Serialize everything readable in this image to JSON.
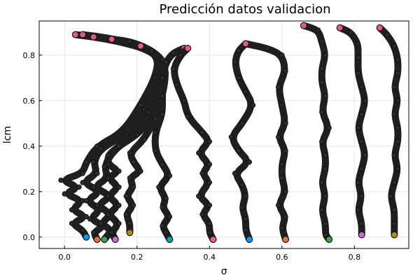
{
  "chart_data": {
    "type": "scatter",
    "title": "Predicción datos validacion",
    "xlabel": "σ",
    "ylabel": "lcm",
    "xlim": [
      -0.07,
      0.95
    ],
    "ylim": [
      -0.05,
      0.95
    ],
    "xticks": [
      0.0,
      0.2,
      0.4,
      0.6,
      0.8
    ],
    "yticks": [
      0.0,
      0.2,
      0.4,
      0.6,
      0.8
    ],
    "xtick_labels": [
      "0.0",
      "0.2",
      "0.4",
      "0.6",
      "0.8"
    ],
    "ytick_labels": [
      "0.0",
      "0.2",
      "0.4",
      "0.6",
      "0.8"
    ],
    "grid": true,
    "legend": "none",
    "colors": {
      "trajectory": "#1f1f1f",
      "start_marker": "#e5588e",
      "end_markers": [
        "#009af9",
        "#e26f46",
        "#3da44d",
        "#c271d2",
        "#ac8d18",
        "#00a9ad",
        "#ed5e93"
      ]
    },
    "series": [
      {
        "points": [
          [
            0.03,
            0.89
          ],
          [
            0.08,
            0.88
          ],
          [
            0.15,
            0.86
          ],
          [
            0.22,
            0.83
          ],
          [
            0.26,
            0.79
          ],
          [
            0.25,
            0.7
          ],
          [
            0.21,
            0.58
          ],
          [
            0.16,
            0.46
          ],
          [
            0.09,
            0.4
          ],
          [
            0.06,
            0.33
          ],
          [
            0.05,
            0.28
          ],
          [
            -0.01,
            0.25
          ],
          [
            0.04,
            0.22
          ],
          [
            0.0,
            0.19
          ],
          [
            0.05,
            0.16
          ],
          [
            0.02,
            0.12
          ],
          [
            0.06,
            0.09
          ],
          [
            0.02,
            0.06
          ],
          [
            0.05,
            0.03
          ],
          [
            0.06,
            0.0
          ]
        ]
      },
      {
        "points": [
          [
            0.05,
            0.89
          ],
          [
            0.1,
            0.88
          ],
          [
            0.17,
            0.86
          ],
          [
            0.23,
            0.83
          ],
          [
            0.27,
            0.78
          ],
          [
            0.26,
            0.68
          ],
          [
            0.22,
            0.56
          ],
          [
            0.17,
            0.45
          ],
          [
            0.1,
            0.39
          ],
          [
            0.08,
            0.33
          ],
          [
            0.09,
            0.28
          ],
          [
            0.05,
            0.24
          ],
          [
            0.1,
            0.2
          ],
          [
            0.06,
            0.16
          ],
          [
            0.1,
            0.12
          ],
          [
            0.07,
            0.08
          ],
          [
            0.11,
            0.05
          ],
          [
            0.08,
            0.02
          ],
          [
            0.09,
            -0.01
          ]
        ]
      },
      {
        "points": [
          [
            0.08,
            0.88
          ],
          [
            0.13,
            0.87
          ],
          [
            0.19,
            0.85
          ],
          [
            0.24,
            0.82
          ],
          [
            0.27,
            0.77
          ],
          [
            0.26,
            0.67
          ],
          [
            0.23,
            0.55
          ],
          [
            0.18,
            0.44
          ],
          [
            0.13,
            0.37
          ],
          [
            0.11,
            0.31
          ],
          [
            0.12,
            0.26
          ],
          [
            0.08,
            0.22
          ],
          [
            0.13,
            0.18
          ],
          [
            0.09,
            0.14
          ],
          [
            0.13,
            0.1
          ],
          [
            0.1,
            0.06
          ],
          [
            0.13,
            0.03
          ],
          [
            0.11,
            -0.01
          ]
        ]
      },
      {
        "points": [
          [
            0.13,
            0.87
          ],
          [
            0.18,
            0.86
          ],
          [
            0.23,
            0.83
          ],
          [
            0.26,
            0.79
          ],
          [
            0.27,
            0.72
          ],
          [
            0.26,
            0.62
          ],
          [
            0.24,
            0.52
          ],
          [
            0.2,
            0.45
          ],
          [
            0.15,
            0.4
          ],
          [
            0.12,
            0.36
          ],
          [
            0.12,
            0.32
          ],
          [
            0.15,
            0.29
          ],
          [
            0.12,
            0.26
          ],
          [
            0.15,
            0.22
          ],
          [
            0.12,
            0.18
          ],
          [
            0.15,
            0.14
          ],
          [
            0.12,
            0.1
          ],
          [
            0.15,
            0.06
          ],
          [
            0.13,
            0.02
          ],
          [
            0.14,
            -0.01
          ]
        ]
      },
      {
        "points": [
          [
            0.21,
            0.84
          ],
          [
            0.24,
            0.82
          ],
          [
            0.27,
            0.78
          ],
          [
            0.28,
            0.72
          ],
          [
            0.27,
            0.62
          ],
          [
            0.25,
            0.52
          ],
          [
            0.22,
            0.43
          ],
          [
            0.18,
            0.37
          ],
          [
            0.19,
            0.33
          ],
          [
            0.21,
            0.29
          ],
          [
            0.18,
            0.26
          ],
          [
            0.19,
            0.22
          ],
          [
            0.17,
            0.18
          ],
          [
            0.19,
            0.14
          ],
          [
            0.17,
            0.1
          ],
          [
            0.18,
            0.06
          ],
          [
            0.18,
            0.02
          ]
        ]
      },
      {
        "points": [
          [
            0.33,
            0.83
          ],
          [
            0.3,
            0.81
          ],
          [
            0.28,
            0.77
          ],
          [
            0.27,
            0.7
          ],
          [
            0.27,
            0.62
          ],
          [
            0.27,
            0.54
          ],
          [
            0.25,
            0.46
          ],
          [
            0.25,
            0.38
          ],
          [
            0.27,
            0.32
          ],
          [
            0.29,
            0.27
          ],
          [
            0.26,
            0.22
          ],
          [
            0.28,
            0.17
          ],
          [
            0.27,
            0.13
          ],
          [
            0.29,
            0.09
          ],
          [
            0.27,
            0.05
          ],
          [
            0.28,
            0.02
          ],
          [
            0.29,
            -0.01
          ]
        ]
      },
      {
        "points": [
          [
            0.34,
            0.83
          ],
          [
            0.32,
            0.8
          ],
          [
            0.3,
            0.74
          ],
          [
            0.31,
            0.67
          ],
          [
            0.33,
            0.6
          ],
          [
            0.34,
            0.53
          ],
          [
            0.38,
            0.46
          ],
          [
            0.4,
            0.42
          ],
          [
            0.37,
            0.37
          ],
          [
            0.4,
            0.32
          ],
          [
            0.38,
            0.28
          ],
          [
            0.4,
            0.24
          ],
          [
            0.37,
            0.18
          ],
          [
            0.4,
            0.14
          ],
          [
            0.38,
            0.1
          ],
          [
            0.4,
            0.06
          ],
          [
            0.4,
            0.02
          ],
          [
            0.41,
            -0.01
          ]
        ]
      },
      {
        "points": [
          [
            0.5,
            0.85
          ],
          [
            0.48,
            0.82
          ],
          [
            0.47,
            0.77
          ],
          [
            0.48,
            0.7
          ],
          [
            0.5,
            0.64
          ],
          [
            0.52,
            0.58
          ],
          [
            0.49,
            0.5
          ],
          [
            0.46,
            0.44
          ],
          [
            0.48,
            0.38
          ],
          [
            0.51,
            0.33
          ],
          [
            0.47,
            0.28
          ],
          [
            0.49,
            0.23
          ],
          [
            0.5,
            0.18
          ],
          [
            0.49,
            0.13
          ],
          [
            0.5,
            0.08
          ],
          [
            0.5,
            0.03
          ],
          [
            0.51,
            -0.01
          ]
        ]
      },
      {
        "points": [
          [
            0.5,
            0.85
          ],
          [
            0.56,
            0.83
          ],
          [
            0.6,
            0.8
          ],
          [
            0.61,
            0.73
          ],
          [
            0.59,
            0.66
          ],
          [
            0.6,
            0.58
          ],
          [
            0.61,
            0.5
          ],
          [
            0.59,
            0.44
          ],
          [
            0.61,
            0.38
          ],
          [
            0.6,
            0.32
          ],
          [
            0.6,
            0.26
          ],
          [
            0.61,
            0.2
          ],
          [
            0.59,
            0.14
          ],
          [
            0.61,
            0.09
          ],
          [
            0.6,
            0.04
          ],
          [
            0.61,
            -0.01
          ]
        ]
      },
      {
        "points": [
          [
            0.66,
            0.93
          ],
          [
            0.7,
            0.91
          ],
          [
            0.71,
            0.86
          ],
          [
            0.72,
            0.8
          ],
          [
            0.71,
            0.74
          ],
          [
            0.71,
            0.68
          ],
          [
            0.72,
            0.62
          ],
          [
            0.71,
            0.55
          ],
          [
            0.73,
            0.48
          ],
          [
            0.71,
            0.42
          ],
          [
            0.72,
            0.36
          ],
          [
            0.72,
            0.3
          ],
          [
            0.71,
            0.24
          ],
          [
            0.72,
            0.18
          ],
          [
            0.71,
            0.12
          ],
          [
            0.72,
            0.06
          ],
          [
            0.72,
            0.01
          ],
          [
            0.73,
            -0.01
          ]
        ]
      },
      {
        "points": [
          [
            0.76,
            0.92
          ],
          [
            0.79,
            0.9
          ],
          [
            0.81,
            0.85
          ],
          [
            0.81,
            0.79
          ],
          [
            0.81,
            0.72
          ],
          [
            0.82,
            0.66
          ],
          [
            0.83,
            0.6
          ],
          [
            0.82,
            0.54
          ],
          [
            0.81,
            0.48
          ],
          [
            0.82,
            0.42
          ],
          [
            0.83,
            0.36
          ],
          [
            0.82,
            0.3
          ],
          [
            0.81,
            0.24
          ],
          [
            0.82,
            0.18
          ],
          [
            0.81,
            0.12
          ],
          [
            0.82,
            0.06
          ],
          [
            0.82,
            0.01
          ]
        ]
      },
      {
        "points": [
          [
            0.87,
            0.92
          ],
          [
            0.89,
            0.89
          ],
          [
            0.91,
            0.84
          ],
          [
            0.92,
            0.78
          ],
          [
            0.92,
            0.72
          ],
          [
            0.91,
            0.66
          ],
          [
            0.92,
            0.6
          ],
          [
            0.91,
            0.54
          ],
          [
            0.92,
            0.48
          ],
          [
            0.92,
            0.42
          ],
          [
            0.91,
            0.36
          ],
          [
            0.92,
            0.3
          ],
          [
            0.91,
            0.24
          ],
          [
            0.9,
            0.18
          ],
          [
            0.91,
            0.12
          ],
          [
            0.91,
            0.06
          ],
          [
            0.91,
            0.01
          ]
        ]
      }
    ]
  }
}
